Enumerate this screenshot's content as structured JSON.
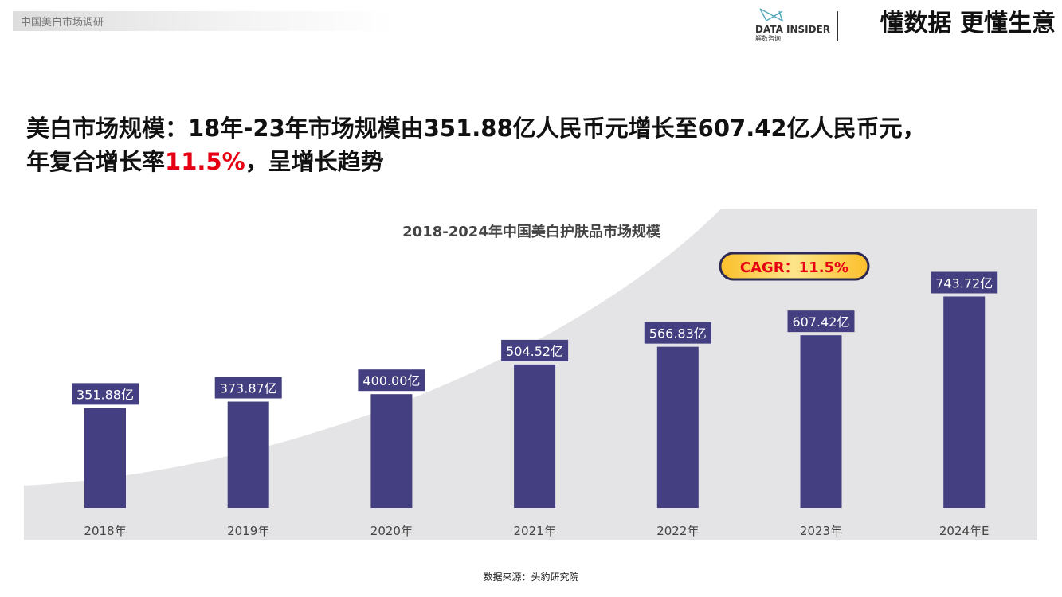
{
  "header": {
    "section": "中国美白市场调研",
    "logo_name": "DATA INSIDER",
    "logo_cn": "解数咨询",
    "slogan": "懂数据 更懂生意"
  },
  "headline": {
    "line1": "美白市场规模：18年-23年市场规模由351.88亿人民币元增长至607.42亿人民币元，",
    "line2_a": "年复合增长率",
    "line2_highlight": "11.5%",
    "line2_b": "，呈增长趋势"
  },
  "colors": {
    "bar": "#443f80",
    "highlight": "#e60012",
    "cagr_fill": "#fdd34a"
  },
  "chart_data": {
    "type": "bar",
    "title": "2018-2024年中国美白护肤品市场规模",
    "categories": [
      "2018年",
      "2019年",
      "2020年",
      "2021年",
      "2022年",
      "2023年",
      "2024年E"
    ],
    "values": [
      351.88,
      373.87,
      400.0,
      504.52,
      566.83,
      607.42,
      743.72
    ],
    "data_labels": [
      "351.88亿",
      "373.87亿",
      "400.00亿",
      "504.52亿",
      "566.83亿",
      "607.42亿",
      "743.72亿"
    ],
    "annotation": "CAGR：11.5%",
    "grid": false
  },
  "footer": {
    "source": "数据来源：头豹研究院"
  }
}
